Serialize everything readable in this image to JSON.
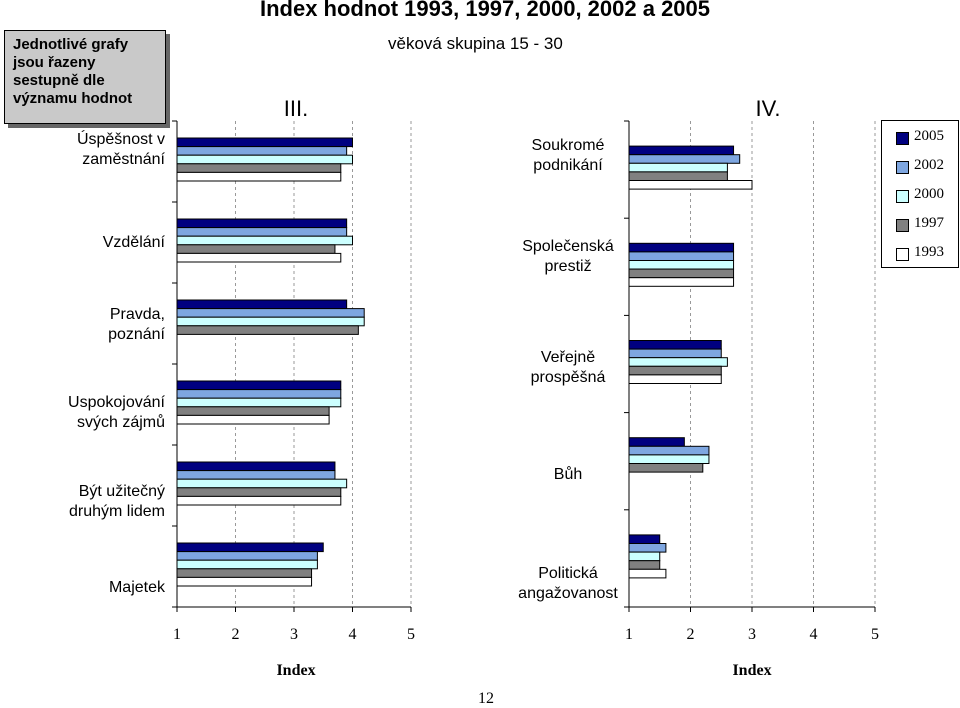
{
  "title": "Index hodnot 1993, 1997, 2000, 2002 a 2005",
  "subtitle": "věková skupina 15 - 30",
  "note": "Jednotlivé grafy jsou řazeny sestupně dle významu hodnot",
  "page_number": "12",
  "colors": {
    "2005": "#000080",
    "2002": "#7EA6E0",
    "2000": "#CCFFFF",
    "1997": "#808080",
    "1993": "#FFFFFF"
  },
  "legend": [
    "2005",
    "2002",
    "2000",
    "1997",
    "1993"
  ],
  "chart_data": [
    {
      "type": "bar",
      "panel_label": "III.",
      "xlabel": "Index",
      "xlim": [
        1,
        5
      ],
      "xticks": [
        "1",
        "2",
        "3",
        "4",
        "5"
      ],
      "categories": [
        "Úspěšnost v zaměstnání",
        "Vzdělání",
        "Pravda, poznání",
        "Uspokojování svých zájmů",
        "Být užitečný druhým lidem",
        "Majetek"
      ],
      "series": [
        {
          "name": "2005",
          "values": [
            4.0,
            3.9,
            3.9,
            3.8,
            3.7,
            3.5
          ]
        },
        {
          "name": "2002",
          "values": [
            3.9,
            3.9,
            4.2,
            3.8,
            3.7,
            3.4
          ]
        },
        {
          "name": "2000",
          "values": [
            4.0,
            4.0,
            4.2,
            3.8,
            3.9,
            3.4
          ]
        },
        {
          "name": "1997",
          "values": [
            3.8,
            3.7,
            4.1,
            3.6,
            3.8,
            3.3
          ]
        },
        {
          "name": "1993",
          "values": [
            3.8,
            3.8,
            null,
            3.6,
            3.8,
            3.3
          ]
        }
      ],
      "grid": true,
      "legend_position": "right"
    },
    {
      "type": "bar",
      "panel_label": "IV.",
      "xlabel": "Index",
      "xlim": [
        1,
        5
      ],
      "xticks": [
        "1",
        "2",
        "3",
        "4",
        "5"
      ],
      "categories": [
        "Soukromé podnikání",
        "Společenská prestiž",
        "Veřejně prospěšná",
        "Bůh",
        "Politická angažovanost"
      ],
      "series": [
        {
          "name": "2005",
          "values": [
            2.7,
            2.7,
            2.5,
            1.9,
            1.5
          ]
        },
        {
          "name": "2002",
          "values": [
            2.8,
            2.7,
            2.5,
            2.3,
            1.6
          ]
        },
        {
          "name": "2000",
          "values": [
            2.6,
            2.7,
            2.6,
            2.3,
            1.5
          ]
        },
        {
          "name": "1997",
          "values": [
            2.6,
            2.7,
            2.5,
            2.2,
            1.5
          ]
        },
        {
          "name": "1993",
          "values": [
            3.0,
            2.7,
            2.5,
            null,
            1.6
          ]
        }
      ],
      "grid": true,
      "legend_position": "right"
    }
  ]
}
